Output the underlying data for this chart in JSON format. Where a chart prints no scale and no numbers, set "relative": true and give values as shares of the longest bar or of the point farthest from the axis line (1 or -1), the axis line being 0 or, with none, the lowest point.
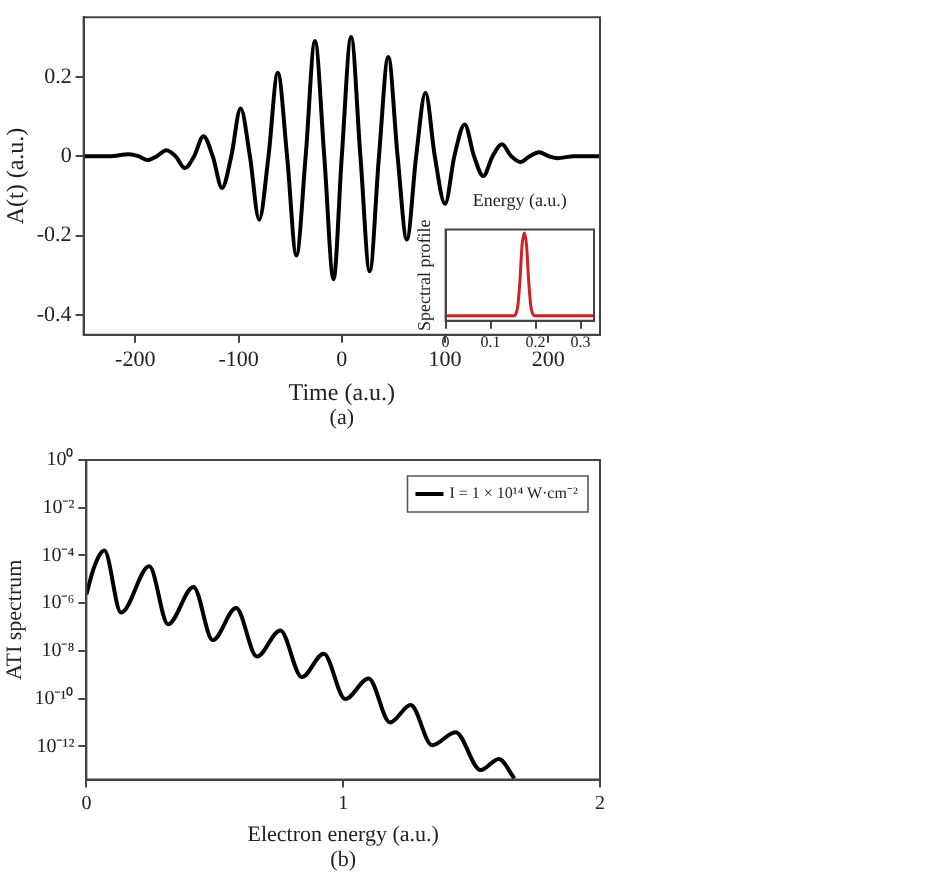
{
  "chart_data": [
    {
      "type": "line",
      "xlabel": "Time (a.u.)",
      "ylabel": "A(t) (a.u.)",
      "annotations": [
        "(a)"
      ],
      "xlim": [
        -250,
        250
      ],
      "xticks": [
        -200,
        -100,
        0,
        100,
        200
      ],
      "ylim": [
        -0.45,
        0.35
      ],
      "yticks": [
        -0.4,
        -0.2,
        0,
        0.2
      ],
      "marker": "none",
      "series": [
        {
          "color": "#000000",
          "x": [
            -250,
            -225,
            -206,
            -197,
            -188,
            -179,
            -170,
            -161,
            -152,
            -143,
            -134,
            -125,
            -116,
            -107,
            -98,
            -89,
            -80,
            -71,
            -62,
            -53,
            -44,
            -35,
            -26,
            -17,
            -8,
            0,
            9,
            18,
            27,
            36,
            45,
            54,
            63,
            72,
            81,
            90,
            100,
            109,
            119,
            128,
            137,
            146,
            155,
            164,
            173,
            182,
            191,
            200,
            209,
            225,
            250
          ],
          "values": [
            0,
            0,
            0.005,
            0,
            -0.01,
            0,
            0.015,
            0,
            -0.03,
            0,
            0.05,
            0,
            -0.08,
            0,
            0.12,
            0,
            -0.16,
            0,
            0.21,
            0,
            -0.25,
            0,
            0.29,
            0,
            -0.31,
            0,
            0.3,
            0,
            -0.29,
            0,
            0.25,
            0,
            -0.21,
            0,
            0.16,
            0,
            -0.12,
            0,
            0.08,
            0,
            -0.05,
            0,
            0.03,
            0,
            -0.015,
            0,
            0.01,
            0,
            -0.005,
            0,
            0
          ]
        }
      ]
    },
    {
      "type": "line",
      "xlabel": "Energy (a.u.)",
      "ylabel": "Spectral profile",
      "relative": true,
      "tick_labels": "x",
      "marker": "none",
      "xlim": [
        0,
        0.33
      ],
      "xticks": [
        0,
        0.1,
        0.2,
        0.3
      ],
      "series": [
        {
          "color": "#cc2222",
          "x": [
            0,
            0.15,
            0.16,
            0.165,
            0.17,
            0.175,
            0.18,
            0.185,
            0.19,
            0.2,
            0.33
          ],
          "values": [
            0,
            0,
            0.1,
            0.4,
            0.85,
            1,
            0.85,
            0.4,
            0.1,
            0,
            0
          ]
        }
      ]
    },
    {
      "type": "line",
      "xlabel": "Electron energy (a.u.)",
      "ylabel": "ATI spectrum",
      "annotations": [
        "(b)"
      ],
      "log": "y",
      "legend": "top right",
      "marker": "none",
      "xlim": [
        0,
        2
      ],
      "xticks": [
        0,
        1,
        2
      ],
      "ylim": [
        4e-14,
        1
      ],
      "yticks": [
        {
          "value": 1,
          "label": "10⁰"
        },
        {
          "value": 0.01,
          "label": "10⁻²"
        },
        {
          "value": 0.0001,
          "label": "10⁻⁴"
        },
        {
          "value": 1e-06,
          "label": "10⁻⁶"
        },
        {
          "value": 1e-08,
          "label": "10⁻⁸"
        },
        {
          "value": 1e-10,
          "label": "10⁻¹⁰"
        },
        {
          "value": 1e-12,
          "label": "10⁻¹²"
        }
      ],
      "series": [
        {
          "name": "I = 1 × 10¹⁴ W·cm⁻²",
          "color": "#000000",
          "x": [
            0,
            0.03,
            0.07,
            0.135,
            0.245,
            0.318,
            0.417,
            0.492,
            0.583,
            0.664,
            0.755,
            0.839,
            0.924,
            1.008,
            1.099,
            1.182,
            1.263,
            1.346,
            1.4375,
            1.535,
            1.606,
            1.667
          ],
          "values": [
            2.3e-06,
            3.2e-05,
            0.00016,
            4e-07,
            3.5e-05,
            1.3e-07,
            4.8e-06,
            2.8e-08,
            6.2e-07,
            5.8e-09,
            7.1e-08,
            7.9e-10,
            7.6e-09,
            9.5e-11,
            6.9e-10,
            1e-11,
            5.4e-11,
            1.1e-12,
            3.9e-12,
            1e-13,
            2.9e-13,
            4.4e-14
          ]
        }
      ]
    }
  ]
}
